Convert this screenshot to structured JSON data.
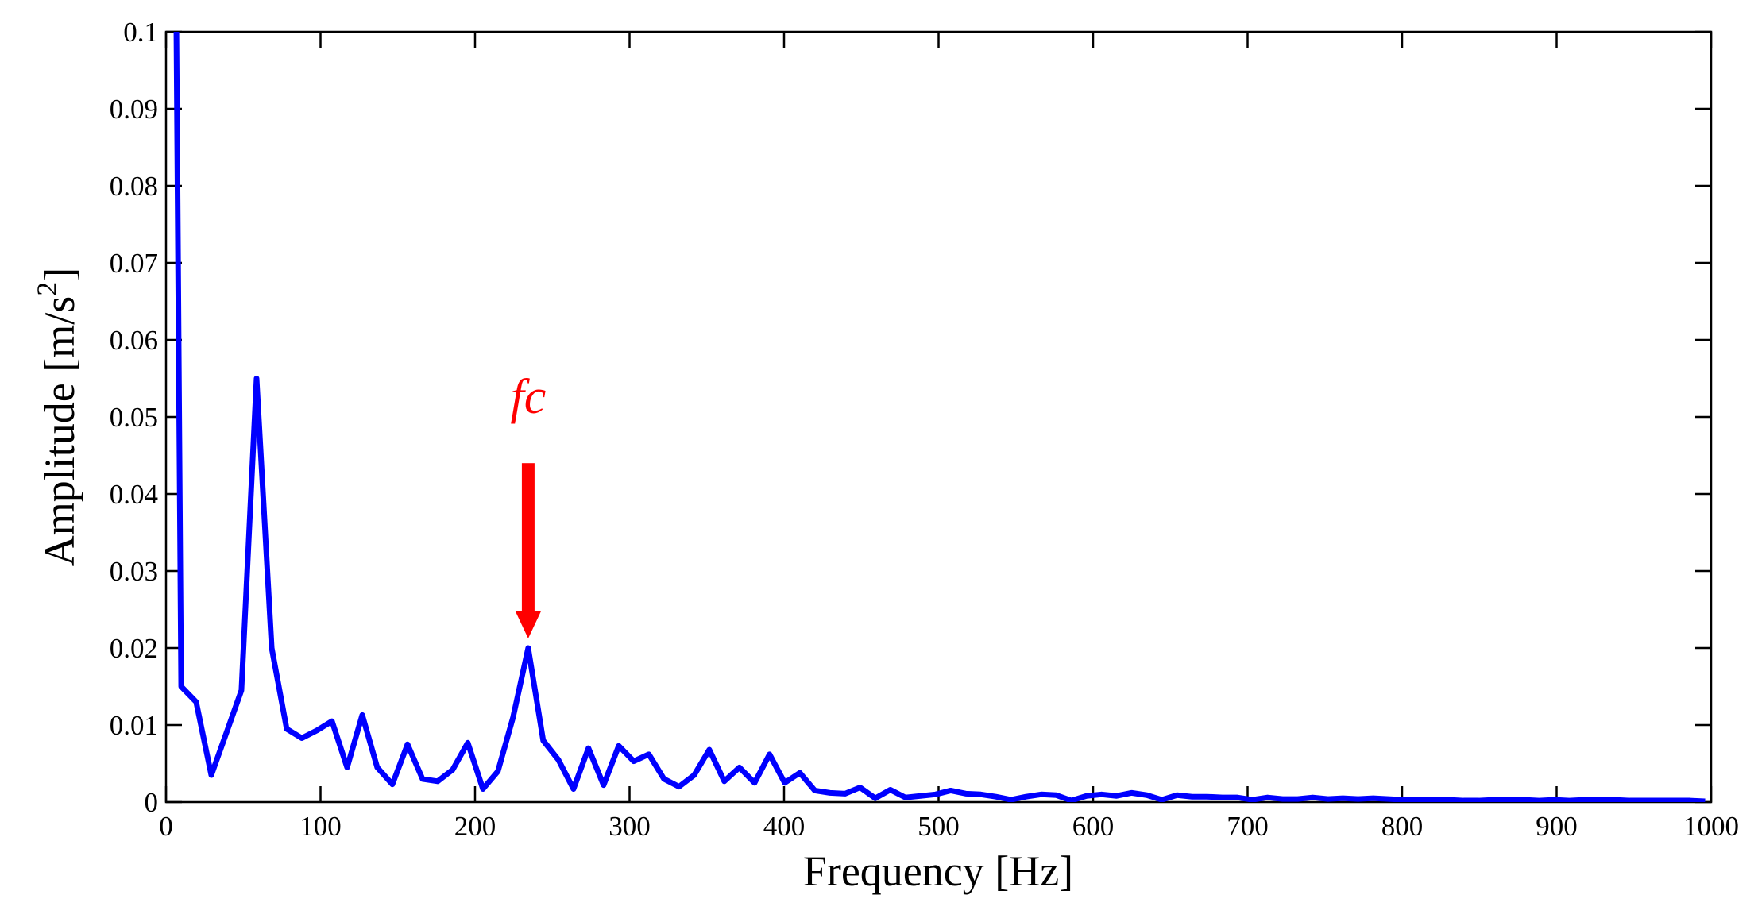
{
  "chart_data": {
    "type": "line",
    "title": "",
    "xlabel": "Frequency [Hz]",
    "ylabel_main": "Amplitude [m/s",
    "ylabel_sup": "2",
    "ylabel_end": "]",
    "xlim": [
      0,
      1000
    ],
    "ylim": [
      0,
      0.1
    ],
    "grid": false,
    "xticks": [
      "0",
      "100",
      "200",
      "300",
      "400",
      "500",
      "600",
      "700",
      "800",
      "900",
      "1000"
    ],
    "yticks": [
      "0",
      "0.01",
      "0.02",
      "0.03",
      "0.04",
      "0.05",
      "0.06",
      "0.07",
      "0.08",
      "0.09",
      "0.1"
    ],
    "line_color": "#0000ff",
    "annotation": {
      "text": "fc",
      "x": 234.4,
      "y": 0.02,
      "color": "#ff0000"
    },
    "series": [
      {
        "x": [
          4.9,
          9.8,
          19.5,
          29.3,
          39.1,
          48.8,
          58.6,
          68.4,
          78.1,
          87.9,
          97.7,
          107.4,
          117.2,
          127.0,
          136.7,
          146.5,
          156.3,
          166.0,
          175.8,
          185.5,
          195.3,
          205.1,
          214.8,
          224.6,
          234.4,
          244.1,
          253.9,
          263.7,
          273.4,
          283.2,
          293.0,
          302.7,
          312.5,
          322.3,
          332.0,
          341.8,
          351.6,
          361.3,
          371.1,
          380.9,
          390.6,
          400.4,
          410.2,
          419.9,
          429.7,
          439.5,
          449.2,
          459.0,
          468.8,
          478.5,
          488.3,
          498.0,
          507.8,
          517.6,
          527.3,
          537.1,
          546.9,
          556.6,
          566.4,
          576.2,
          585.9,
          595.7,
          605.5,
          615.2,
          625.0,
          634.8,
          644.5,
          654.3,
          664.1,
          673.8,
          683.6,
          693.4,
          703.1,
          712.9,
          722.7,
          732.4,
          742.2,
          752.0,
          761.7,
          771.5,
          781.3,
          791.0,
          800.8,
          810.5,
          820.3,
          830.1,
          839.8,
          849.6,
          859.4,
          869.1,
          878.9,
          888.7,
          898.4,
          908.2,
          918.0,
          927.7,
          937.5,
          947.3,
          957.0,
          966.8,
          976.6,
          986.3,
          996.1
        ],
        "y": [
          0.15,
          0.015,
          0.013,
          0.0035,
          0.009,
          0.0145,
          0.055,
          0.02,
          0.0095,
          0.0083,
          0.0093,
          0.0105,
          0.0045,
          0.0113,
          0.0045,
          0.0023,
          0.0075,
          0.003,
          0.0027,
          0.0042,
          0.0077,
          0.0017,
          0.004,
          0.011,
          0.02,
          0.008,
          0.0055,
          0.0017,
          0.007,
          0.0022,
          0.0073,
          0.0053,
          0.0062,
          0.003,
          0.002,
          0.0035,
          0.0068,
          0.0027,
          0.0045,
          0.0025,
          0.0062,
          0.0025,
          0.0038,
          0.0015,
          0.0012,
          0.0011,
          0.0019,
          0.0005,
          0.0016,
          0.0006,
          0.0008,
          0.001,
          0.0015,
          0.0011,
          0.001,
          0.0007,
          0.0003,
          0.0007,
          0.001,
          0.0009,
          0.0002,
          0.0008,
          0.001,
          0.0008,
          0.0012,
          0.0009,
          0.0003,
          0.0009,
          0.0007,
          0.0007,
          0.0006,
          0.0006,
          0.0003,
          0.0006,
          0.0004,
          0.0004,
          0.0006,
          0.0004,
          0.0005,
          0.0004,
          0.0005,
          0.0004,
          0.0003,
          0.0003,
          0.0003,
          0.0003,
          0.0002,
          0.0002,
          0.0003,
          0.0003,
          0.0003,
          0.0002,
          0.0003,
          0.0002,
          0.0003,
          0.0003,
          0.0003,
          0.0002,
          0.0002,
          0.0002,
          0.0002,
          0.0002,
          0.0001
        ]
      }
    ]
  }
}
